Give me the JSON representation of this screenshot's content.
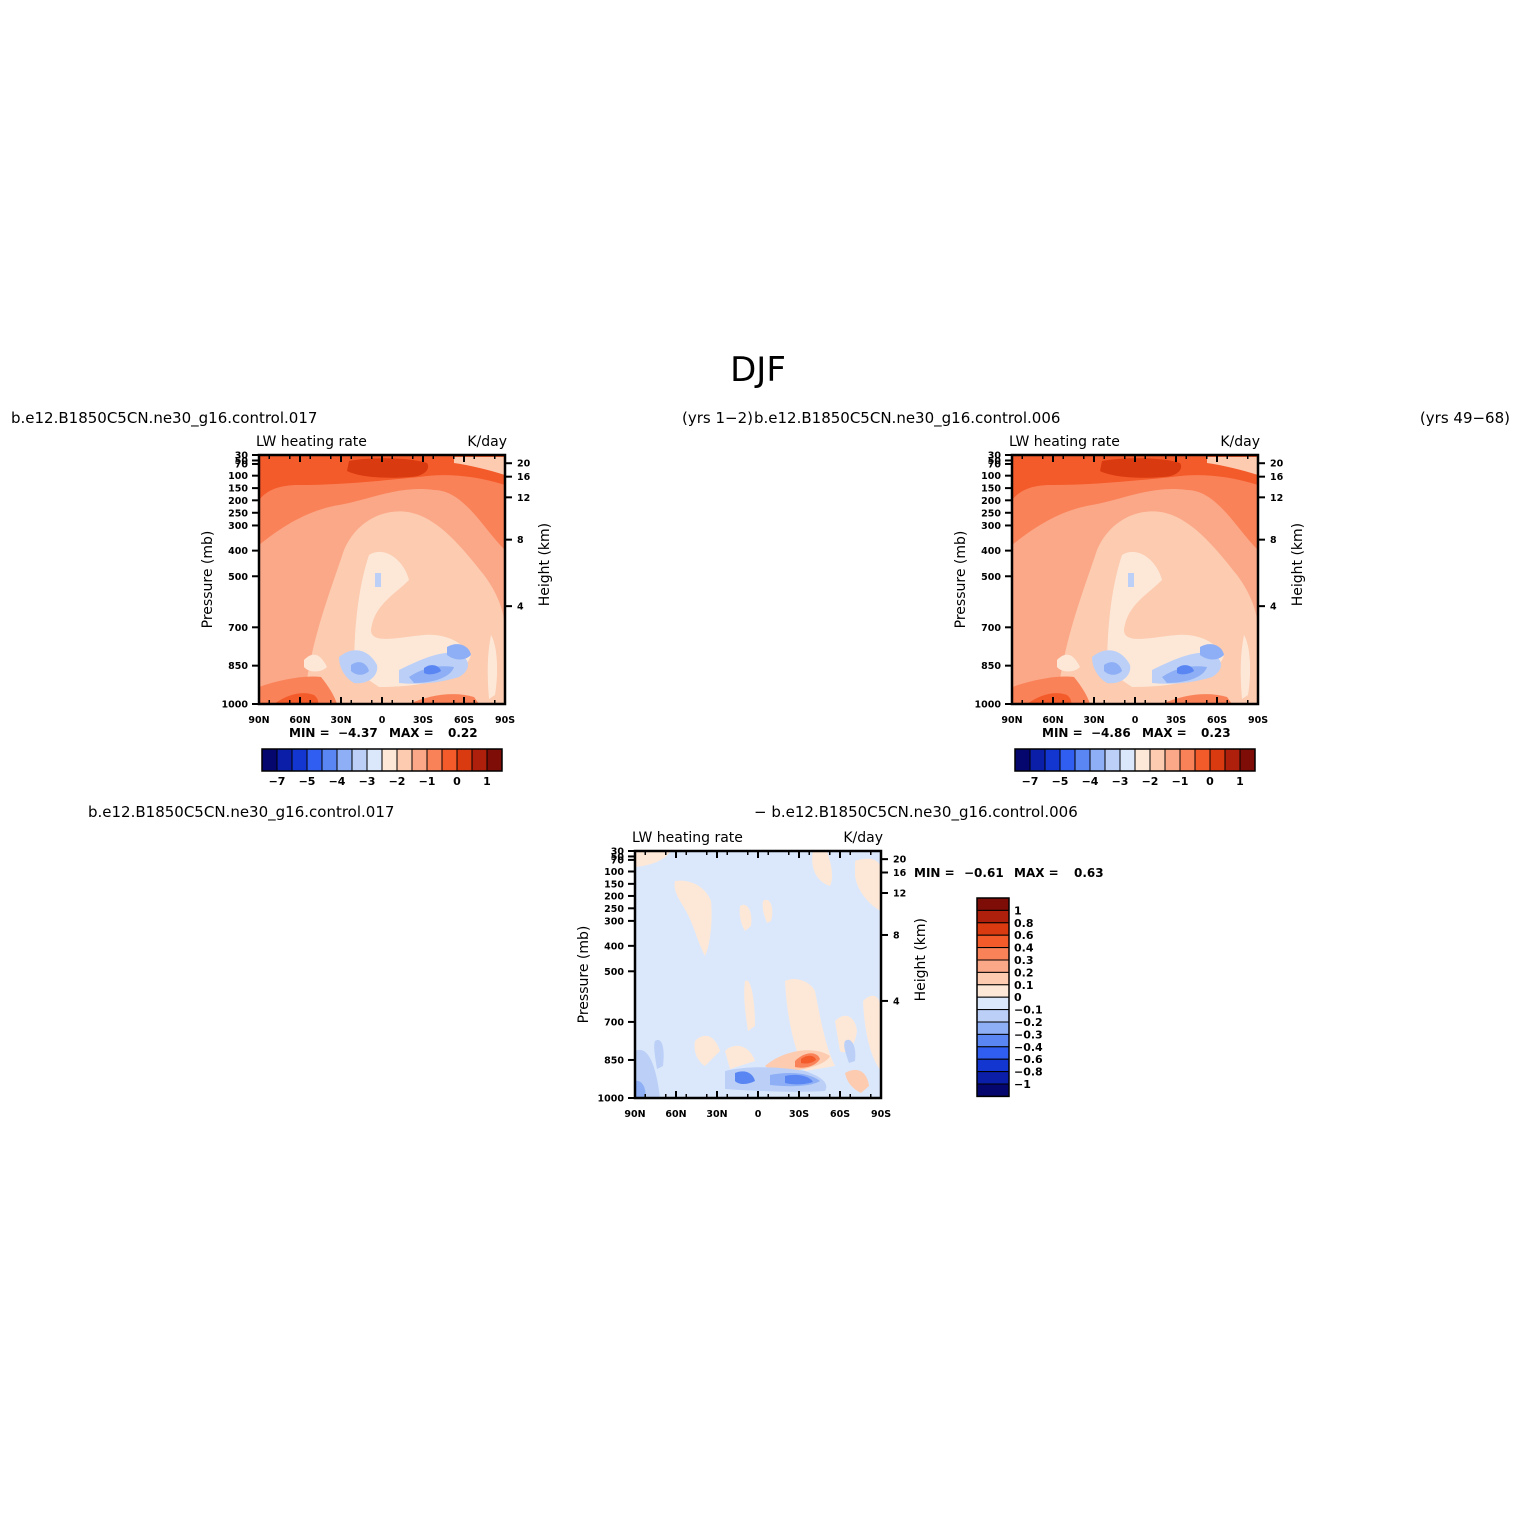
{
  "figure": {
    "title": "DJF"
  },
  "colors": {
    "top_scale": [
      "#06066f",
      "#0a1ea8",
      "#1336d0",
      "#2f5ef0",
      "#5a86f4",
      "#8eaff5",
      "#bcd0f7",
      "#dbe8fc",
      "#fde8d8",
      "#fccbb0",
      "#fba888",
      "#fa8259",
      "#f45b2a",
      "#d93a10",
      "#ae200b",
      "#7e0d07"
    ],
    "diff_scale": [
      "#06066f",
      "#0a1ea8",
      "#1336d0",
      "#2f5ef0",
      "#5a86f4",
      "#8eaff5",
      "#bcd0f7",
      "#dbe8fc",
      "#fde8d8",
      "#fccbb0",
      "#fba888",
      "#fa8259",
      "#f45b2a",
      "#d93a10",
      "#ae200b",
      "#7e0d07"
    ]
  },
  "chart_data": [
    {
      "type": "heatmap",
      "title": "b.e12.B1850C5CN.ne30_g16.control.017",
      "title_right": "(yrs  1−2)",
      "subtitle_left": "LW  heating  rate",
      "subtitle_right": "K/day",
      "xlabel": "",
      "ylabel": "Pressure  (mb)",
      "ylabel_right": "Height  (km)",
      "x_ticks": [
        "90N",
        "60N",
        "30N",
        "0",
        "30S",
        "60S",
        "90S"
      ],
      "y_ticks": [
        "30",
        "50",
        "70",
        "100",
        "150",
        "200",
        "250",
        "300",
        "400",
        "500",
        "700",
        "850",
        "1000"
      ],
      "y_right_ticks": [
        "20",
        "16",
        "12",
        "8",
        "4"
      ],
      "min_label": "MIN =",
      "min_value": "−4.37",
      "max_label": "MAX =",
      "max_value": "0.22",
      "colorbar_labels": [
        "−7",
        "−5",
        "−4",
        "−3",
        "−2",
        "−1",
        "0",
        "1"
      ]
    },
    {
      "type": "heatmap",
      "title": "b.e12.B1850C5CN.ne30_g16.control.006",
      "title_right": "(yrs  49−68)",
      "subtitle_left": "LW  heating  rate",
      "subtitle_right": "K/day",
      "xlabel": "",
      "ylabel": "Pressure  (mb)",
      "ylabel_right": "Height  (km)",
      "x_ticks": [
        "90N",
        "60N",
        "30N",
        "0",
        "30S",
        "60S",
        "90S"
      ],
      "y_ticks": [
        "30",
        "50",
        "70",
        "100",
        "150",
        "200",
        "250",
        "300",
        "400",
        "500",
        "700",
        "850",
        "1000"
      ],
      "y_right_ticks": [
        "20",
        "16",
        "12",
        "8",
        "4"
      ],
      "min_label": "MIN =",
      "min_value": "−4.86",
      "max_label": "MAX =",
      "max_value": "0.23",
      "colorbar_labels": [
        "−7",
        "−5",
        "−4",
        "−3",
        "−2",
        "−1",
        "0",
        "1"
      ]
    },
    {
      "type": "heatmap",
      "title_left": "b.e12.B1850C5CN.ne30_g16.control.017",
      "title_center": "−  b.e12.B1850C5CN.ne30_g16.control.006",
      "subtitle_left": "LW  heating  rate",
      "subtitle_right": "K/day",
      "xlabel": "",
      "ylabel": "Pressure  (mb)",
      "ylabel_right": "Height  (km)",
      "x_ticks": [
        "90N",
        "60N",
        "30N",
        "0",
        "30S",
        "60S",
        "90S"
      ],
      "y_ticks": [
        "30",
        "50",
        "70",
        "100",
        "150",
        "200",
        "250",
        "300",
        "400",
        "500",
        "700",
        "850",
        "1000"
      ],
      "y_right_ticks": [
        "20",
        "16",
        "12",
        "8",
        "4"
      ],
      "min_label": "MIN =",
      "min_value": "−0.61",
      "max_label": "MAX =",
      "max_value": "0.63",
      "colorbar_labels": [
        "1",
        "0.8",
        "0.6",
        "0.4",
        "0.3",
        "0.2",
        "0.1",
        "0",
        "−0.1",
        "−0.2",
        "−0.3",
        "−0.4",
        "−0.6",
        "−0.8",
        "−1"
      ]
    }
  ]
}
